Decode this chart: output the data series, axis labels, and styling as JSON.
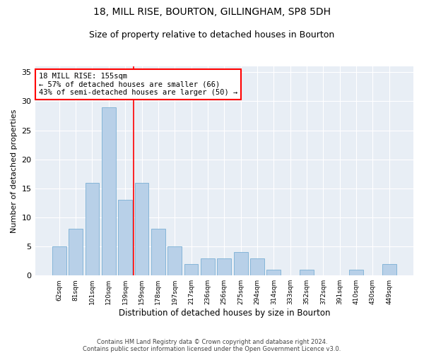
{
  "title1": "18, MILL RISE, BOURTON, GILLINGHAM, SP8 5DH",
  "title2": "Size of property relative to detached houses in Bourton",
  "xlabel": "Distribution of detached houses by size in Bourton",
  "ylabel": "Number of detached properties",
  "categories": [
    "62sqm",
    "81sqm",
    "101sqm",
    "120sqm",
    "139sqm",
    "159sqm",
    "178sqm",
    "197sqm",
    "217sqm",
    "236sqm",
    "256sqm",
    "275sqm",
    "294sqm",
    "314sqm",
    "333sqm",
    "352sqm",
    "372sqm",
    "391sqm",
    "410sqm",
    "430sqm",
    "449sqm"
  ],
  "values": [
    5,
    8,
    16,
    29,
    13,
    16,
    8,
    5,
    2,
    3,
    3,
    4,
    3,
    1,
    0,
    1,
    0,
    0,
    1,
    0,
    2
  ],
  "bar_color": "#b8d0e8",
  "bar_edge_color": "#7aafd4",
  "vline_x_index": 4.5,
  "vline_color": "red",
  "annotation_text": "18 MILL RISE: 155sqm\n← 57% of detached houses are smaller (66)\n43% of semi-detached houses are larger (50) →",
  "annotation_box_color": "white",
  "annotation_box_edge_color": "red",
  "ylim": [
    0,
    36
  ],
  "yticks": [
    0,
    5,
    10,
    15,
    20,
    25,
    30,
    35
  ],
  "bg_color": "#e8eef5",
  "title1_fontsize": 10,
  "title2_fontsize": 9,
  "footer1": "Contains HM Land Registry data © Crown copyright and database right 2024.",
  "footer2": "Contains public sector information licensed under the Open Government Licence v3.0."
}
